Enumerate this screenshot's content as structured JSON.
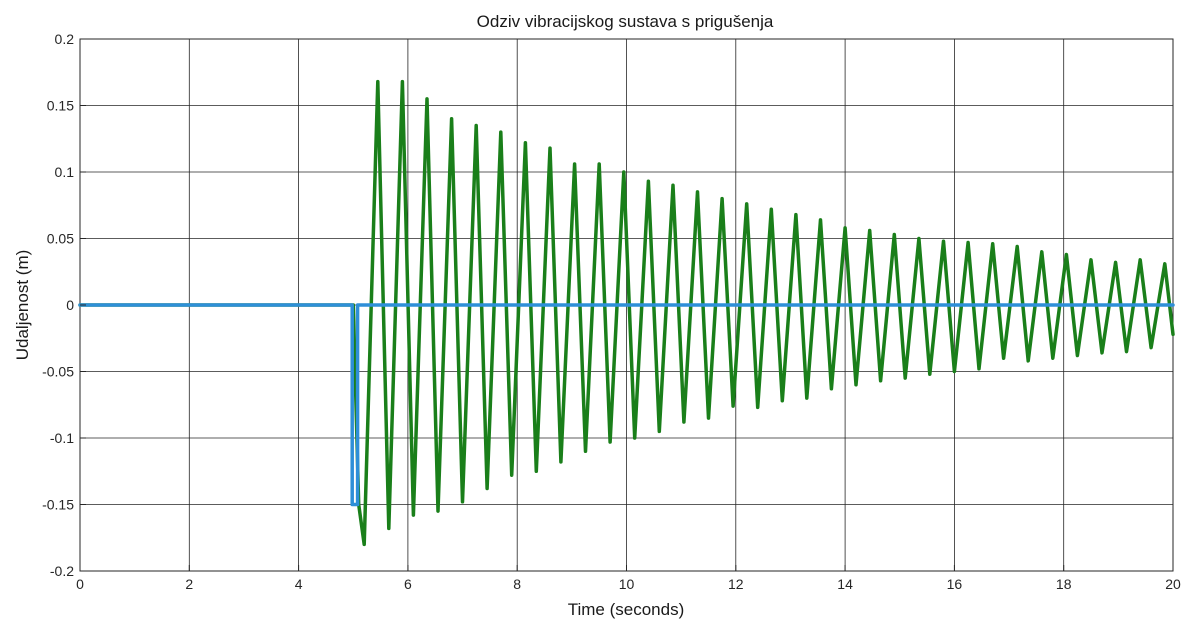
{
  "chart_data": {
    "type": "line",
    "title": "Odziv vibracijskog sustava s prigušenja",
    "xlabel": "Time (seconds)",
    "ylabel": "Udaljenost (m)",
    "xlim": [
      0,
      20
    ],
    "ylim": [
      -0.2,
      0.2
    ],
    "xticks": [
      0,
      2,
      4,
      6,
      8,
      10,
      12,
      14,
      16,
      18,
      20
    ],
    "xtick_labels": [
      "0",
      "2",
      "4",
      "6",
      "8",
      "10",
      "12",
      "14",
      "16",
      "18",
      "20"
    ],
    "yticks": [
      0.2,
      0.15,
      0.1,
      0.05,
      0,
      -0.05,
      -0.1,
      -0.15,
      -0.2
    ],
    "ytick_labels": [
      "0.2",
      "0.15",
      "0.1",
      "0.05",
      "0",
      "-0.05",
      "-0.1",
      "-0.15",
      "-0.2"
    ],
    "grid": true,
    "legend": "none",
    "series": [
      {
        "color": "#1a7f1a",
        "x": [
          0,
          5.0,
          5.1,
          5.2,
          5.45,
          5.65,
          5.9,
          6.1,
          6.35,
          6.55,
          6.8,
          7.0,
          7.25,
          7.45,
          7.7,
          7.9,
          8.15,
          8.35,
          8.6,
          8.8,
          9.05,
          9.25,
          9.5,
          9.7,
          9.95,
          10.15,
          10.4,
          10.6,
          10.85,
          11.05,
          11.3,
          11.5,
          11.75,
          11.95,
          12.2,
          12.4,
          12.65,
          12.85,
          13.1,
          13.3,
          13.55,
          13.75,
          14.0,
          14.2,
          14.45,
          14.65,
          14.9,
          15.1,
          15.35,
          15.55,
          15.8,
          16.0,
          16.25,
          16.45,
          16.7,
          16.9,
          17.15,
          17.35,
          17.6,
          17.8,
          18.05,
          18.25,
          18.5,
          18.7,
          18.95,
          19.15,
          19.4,
          19.6,
          19.85,
          20.0
        ],
        "y": [
          0,
          0,
          -0.15,
          -0.18,
          0.168,
          -0.168,
          0.168,
          -0.158,
          0.155,
          -0.155,
          0.14,
          -0.148,
          0.135,
          -0.138,
          0.13,
          -0.128,
          0.122,
          -0.125,
          0.118,
          -0.118,
          0.106,
          -0.11,
          0.106,
          -0.103,
          0.1,
          -0.1,
          0.093,
          -0.095,
          0.09,
          -0.088,
          0.085,
          -0.085,
          0.08,
          -0.076,
          0.076,
          -0.077,
          0.072,
          -0.072,
          0.068,
          -0.07,
          0.064,
          -0.063,
          0.058,
          -0.06,
          0.056,
          -0.057,
          0.053,
          -0.055,
          0.05,
          -0.052,
          0.048,
          -0.05,
          0.047,
          -0.048,
          0.046,
          -0.04,
          0.044,
          -0.042,
          0.04,
          -0.04,
          0.038,
          -0.038,
          0.034,
          -0.036,
          0.032,
          -0.035,
          0.034,
          -0.032,
          0.031,
          -0.022
        ]
      },
      {
        "color": "#2e8fd8",
        "x": [
          0,
          4.98,
          4.98,
          5.08,
          5.08,
          20
        ],
        "y": [
          0,
          0,
          -0.15,
          -0.15,
          0,
          0
        ]
      }
    ]
  }
}
